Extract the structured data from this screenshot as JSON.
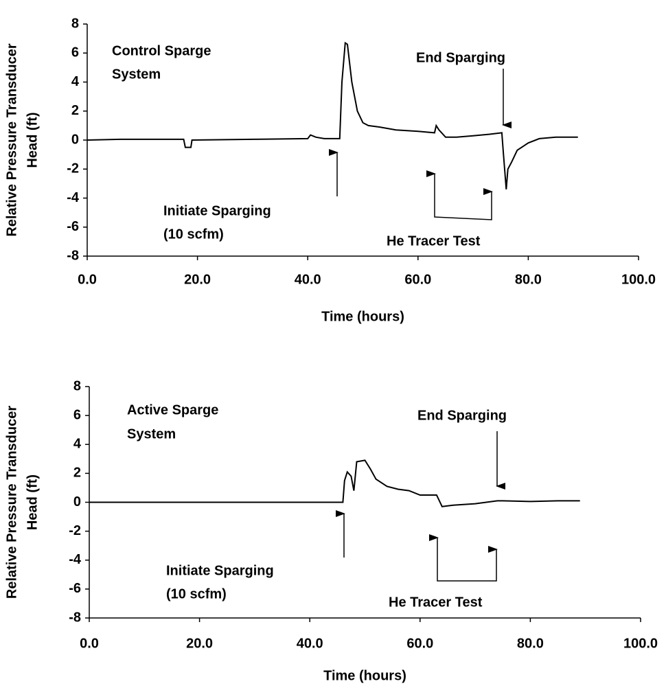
{
  "chart_data": [
    {
      "type": "line",
      "ylabel": [
        "Relative Pressure Transducer",
        "Head (ft)"
      ],
      "xlabel": "Time (hours)",
      "annotations": [
        "Control Sparge",
        "System",
        "End Sparging",
        "Initiate Sparging",
        "(10 scfm)",
        "He Tracer Test"
      ],
      "x": [
        0,
        6,
        17.5,
        17.8,
        18.8,
        19,
        30,
        40,
        40.5,
        41.5,
        43,
        45.8,
        46.2,
        46.8,
        47.2,
        48,
        49,
        50,
        51,
        53,
        56,
        60,
        63,
        63.3,
        63.8,
        65,
        67,
        70,
        73,
        75.2,
        75.5,
        76,
        76.3,
        77,
        78,
        80,
        82,
        85,
        89
      ],
      "values": [
        0,
        0.05,
        0.05,
        -0.5,
        -0.5,
        0,
        0.05,
        0.1,
        0.35,
        0.2,
        0.1,
        0.1,
        4,
        6.7,
        6.6,
        4,
        2,
        1.2,
        1,
        0.9,
        0.7,
        0.6,
        0.5,
        1,
        0.7,
        0.2,
        0.2,
        0.3,
        0.4,
        0.5,
        -1,
        -3.4,
        -2,
        -1.5,
        -0.7,
        -0.2,
        0.1,
        0.2,
        0.2
      ],
      "color": "#000000",
      "xlim": [
        0,
        100
      ],
      "xticks": [
        {
          "value": 0,
          "label": "0.0"
        },
        {
          "value": 20,
          "label": "20.0"
        },
        {
          "value": 40,
          "label": "40.0"
        },
        {
          "value": 60,
          "label": "60.0"
        },
        {
          "value": 80,
          "label": "80.0"
        },
        {
          "value": 100,
          "label": "100.0"
        }
      ],
      "ylim": [
        -8,
        8
      ],
      "yticks": [
        8,
        6,
        4,
        2,
        0,
        -2,
        -4,
        -6,
        -8
      ],
      "grid": false
    },
    {
      "type": "line",
      "ylabel": [
        "Relative Pressure Transducer",
        "Head (ft)"
      ],
      "xlabel": "Time (hours)",
      "annotations": [
        "Active Sparge",
        "System",
        "End Sparging",
        "Initiate Sparging",
        "(10 scfm)",
        "He Tracer Test"
      ],
      "x": [
        0,
        46,
        46.3,
        46.8,
        47.5,
        48,
        48.5,
        50,
        51,
        52,
        54,
        56,
        58,
        60,
        63,
        64,
        66,
        70,
        74,
        75,
        80,
        85,
        89
      ],
      "values": [
        0,
        0,
        1.5,
        2.1,
        1.8,
        0.8,
        2.8,
        2.9,
        2.3,
        1.6,
        1.1,
        0.9,
        0.8,
        0.5,
        0.5,
        -0.3,
        -0.2,
        -0.1,
        0.1,
        0.1,
        0.05,
        0.1,
        0.1
      ],
      "color": "#000000",
      "xlim": [
        0,
        100
      ],
      "xticks": [
        {
          "value": 0,
          "label": "0.0"
        },
        {
          "value": 20,
          "label": "20.0"
        },
        {
          "value": 40,
          "label": "40.0"
        },
        {
          "value": 60,
          "label": "60.0"
        },
        {
          "value": 80,
          "label": "80.0"
        },
        {
          "value": 100,
          "label": "100.0"
        }
      ],
      "ylim": [
        -8,
        8
      ],
      "yticks": [
        8,
        6,
        4,
        2,
        0,
        -2,
        -4,
        -6,
        -8
      ],
      "grid": false
    }
  ]
}
